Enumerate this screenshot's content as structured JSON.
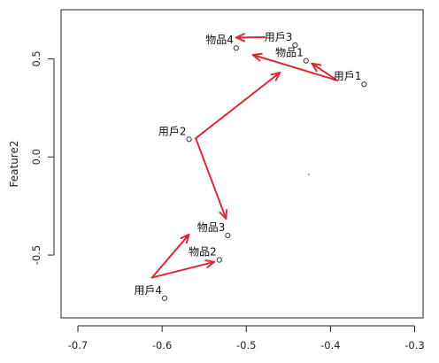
{
  "chart_data": {
    "type": "scatter",
    "title": "",
    "xlabel": "",
    "ylabel": "Feature2",
    "xlim": [
      -0.72,
      -0.29
    ],
    "ylim": [
      -0.82,
      0.75
    ],
    "xticks": [
      -0.7,
      -0.6,
      -0.5,
      -0.4,
      -0.3
    ],
    "yticks": [
      -0.5,
      0.0,
      0.5
    ],
    "xtick_labels": [
      "-0.7",
      "-0.6",
      "-0.5",
      "-0.4",
      "-0.3"
    ],
    "ytick_labels": [
      "-0.5",
      "0.0",
      "0.5"
    ],
    "grid": false,
    "points": [
      {
        "label": "用戶1",
        "x": -0.36,
        "y": 0.37
      },
      {
        "label": "用戶2",
        "x": -0.568,
        "y": 0.09
      },
      {
        "label": "用戶3",
        "x": -0.442,
        "y": 0.57
      },
      {
        "label": "用戶4",
        "x": -0.597,
        "y": -0.72
      },
      {
        "label": "物品1",
        "x": -0.429,
        "y": 0.49
      },
      {
        "label": "物品2",
        "x": -0.532,
        "y": -0.525
      },
      {
        "label": "物品3",
        "x": -0.522,
        "y": -0.4
      },
      {
        "label": "物品4",
        "x": -0.512,
        "y": 0.555
      }
    ],
    "arrows": [
      {
        "from": [
          -0.392,
          0.39
        ],
        "to": [
          -0.422,
          0.476
        ]
      },
      {
        "from": [
          -0.392,
          0.39
        ],
        "to": [
          -0.492,
          0.52
        ]
      },
      {
        "from": [
          -0.478,
          0.61
        ],
        "to": [
          -0.512,
          0.608
        ]
      },
      {
        "from": [
          -0.56,
          0.095
        ],
        "to": [
          -0.46,
          0.43
        ]
      },
      {
        "from": [
          -0.56,
          0.095
        ],
        "to": [
          -0.524,
          -0.315
        ]
      },
      {
        "from": [
          -0.612,
          -0.615
        ],
        "to": [
          -0.568,
          -0.395
        ]
      },
      {
        "from": [
          -0.612,
          -0.615
        ],
        "to": [
          -0.538,
          -0.535
        ]
      }
    ],
    "point_color": "#333333",
    "arrow_color": "#d62a35"
  }
}
